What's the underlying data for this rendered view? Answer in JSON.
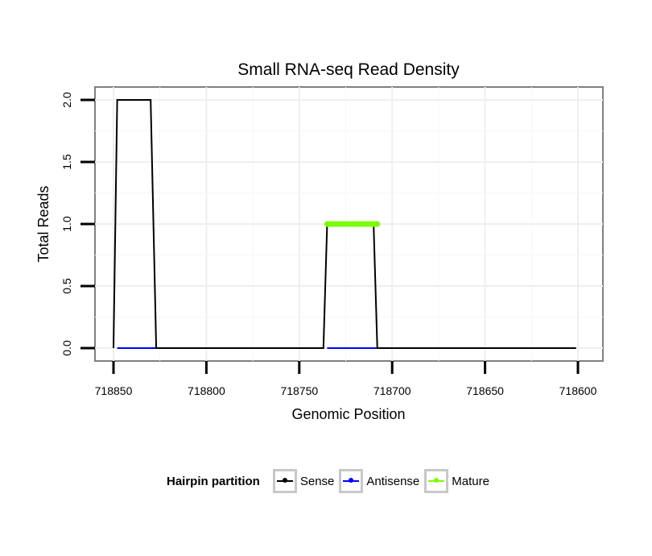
{
  "chart_data": {
    "type": "line",
    "title": "Small RNA-seq Read Density",
    "xlabel": "Genomic Position",
    "ylabel": "Total Reads",
    "x_reversed": true,
    "xlim": [
      718853,
      718600
    ],
    "ylim": [
      0,
      2
    ],
    "x_ticks": [
      718850,
      718800,
      718750,
      718700,
      718650,
      718600
    ],
    "x_tick_labels": [
      "718850",
      "718800",
      "718750",
      "718700",
      "718650",
      "718600"
    ],
    "y_ticks": [
      0,
      0.5,
      1,
      1.5,
      2
    ],
    "y_tick_labels": [
      "0.0",
      "0.5",
      "1.0",
      "1.5",
      "2.0"
    ],
    "grid": true,
    "legend_position": "bottom",
    "series": [
      {
        "name": "Sense",
        "color": "#000000",
        "x": [
          718850,
          718848,
          718830,
          718827,
          718737,
          718735,
          718710,
          718708,
          718601
        ],
        "y": [
          0,
          2,
          2,
          0,
          0,
          1,
          1,
          0,
          0
        ]
      },
      {
        "name": "Antisense",
        "color": "#0000ff",
        "x": [
          718848,
          718827,
          718735,
          718708
        ],
        "y": [
          0,
          0,
          0,
          0
        ],
        "segments": [
          [
            718848,
            718827
          ],
          [
            718735,
            718708
          ]
        ]
      },
      {
        "name": "Mature",
        "color": "#7cfc00",
        "x": [
          718735,
          718708
        ],
        "y": [
          1,
          1
        ]
      }
    ]
  },
  "legend": {
    "title": "Hairpin partition",
    "items": [
      {
        "label": "Sense",
        "color": "#000000"
      },
      {
        "label": "Antisense",
        "color": "#0000ff"
      },
      {
        "label": "Mature",
        "color": "#7cfc00"
      }
    ]
  }
}
